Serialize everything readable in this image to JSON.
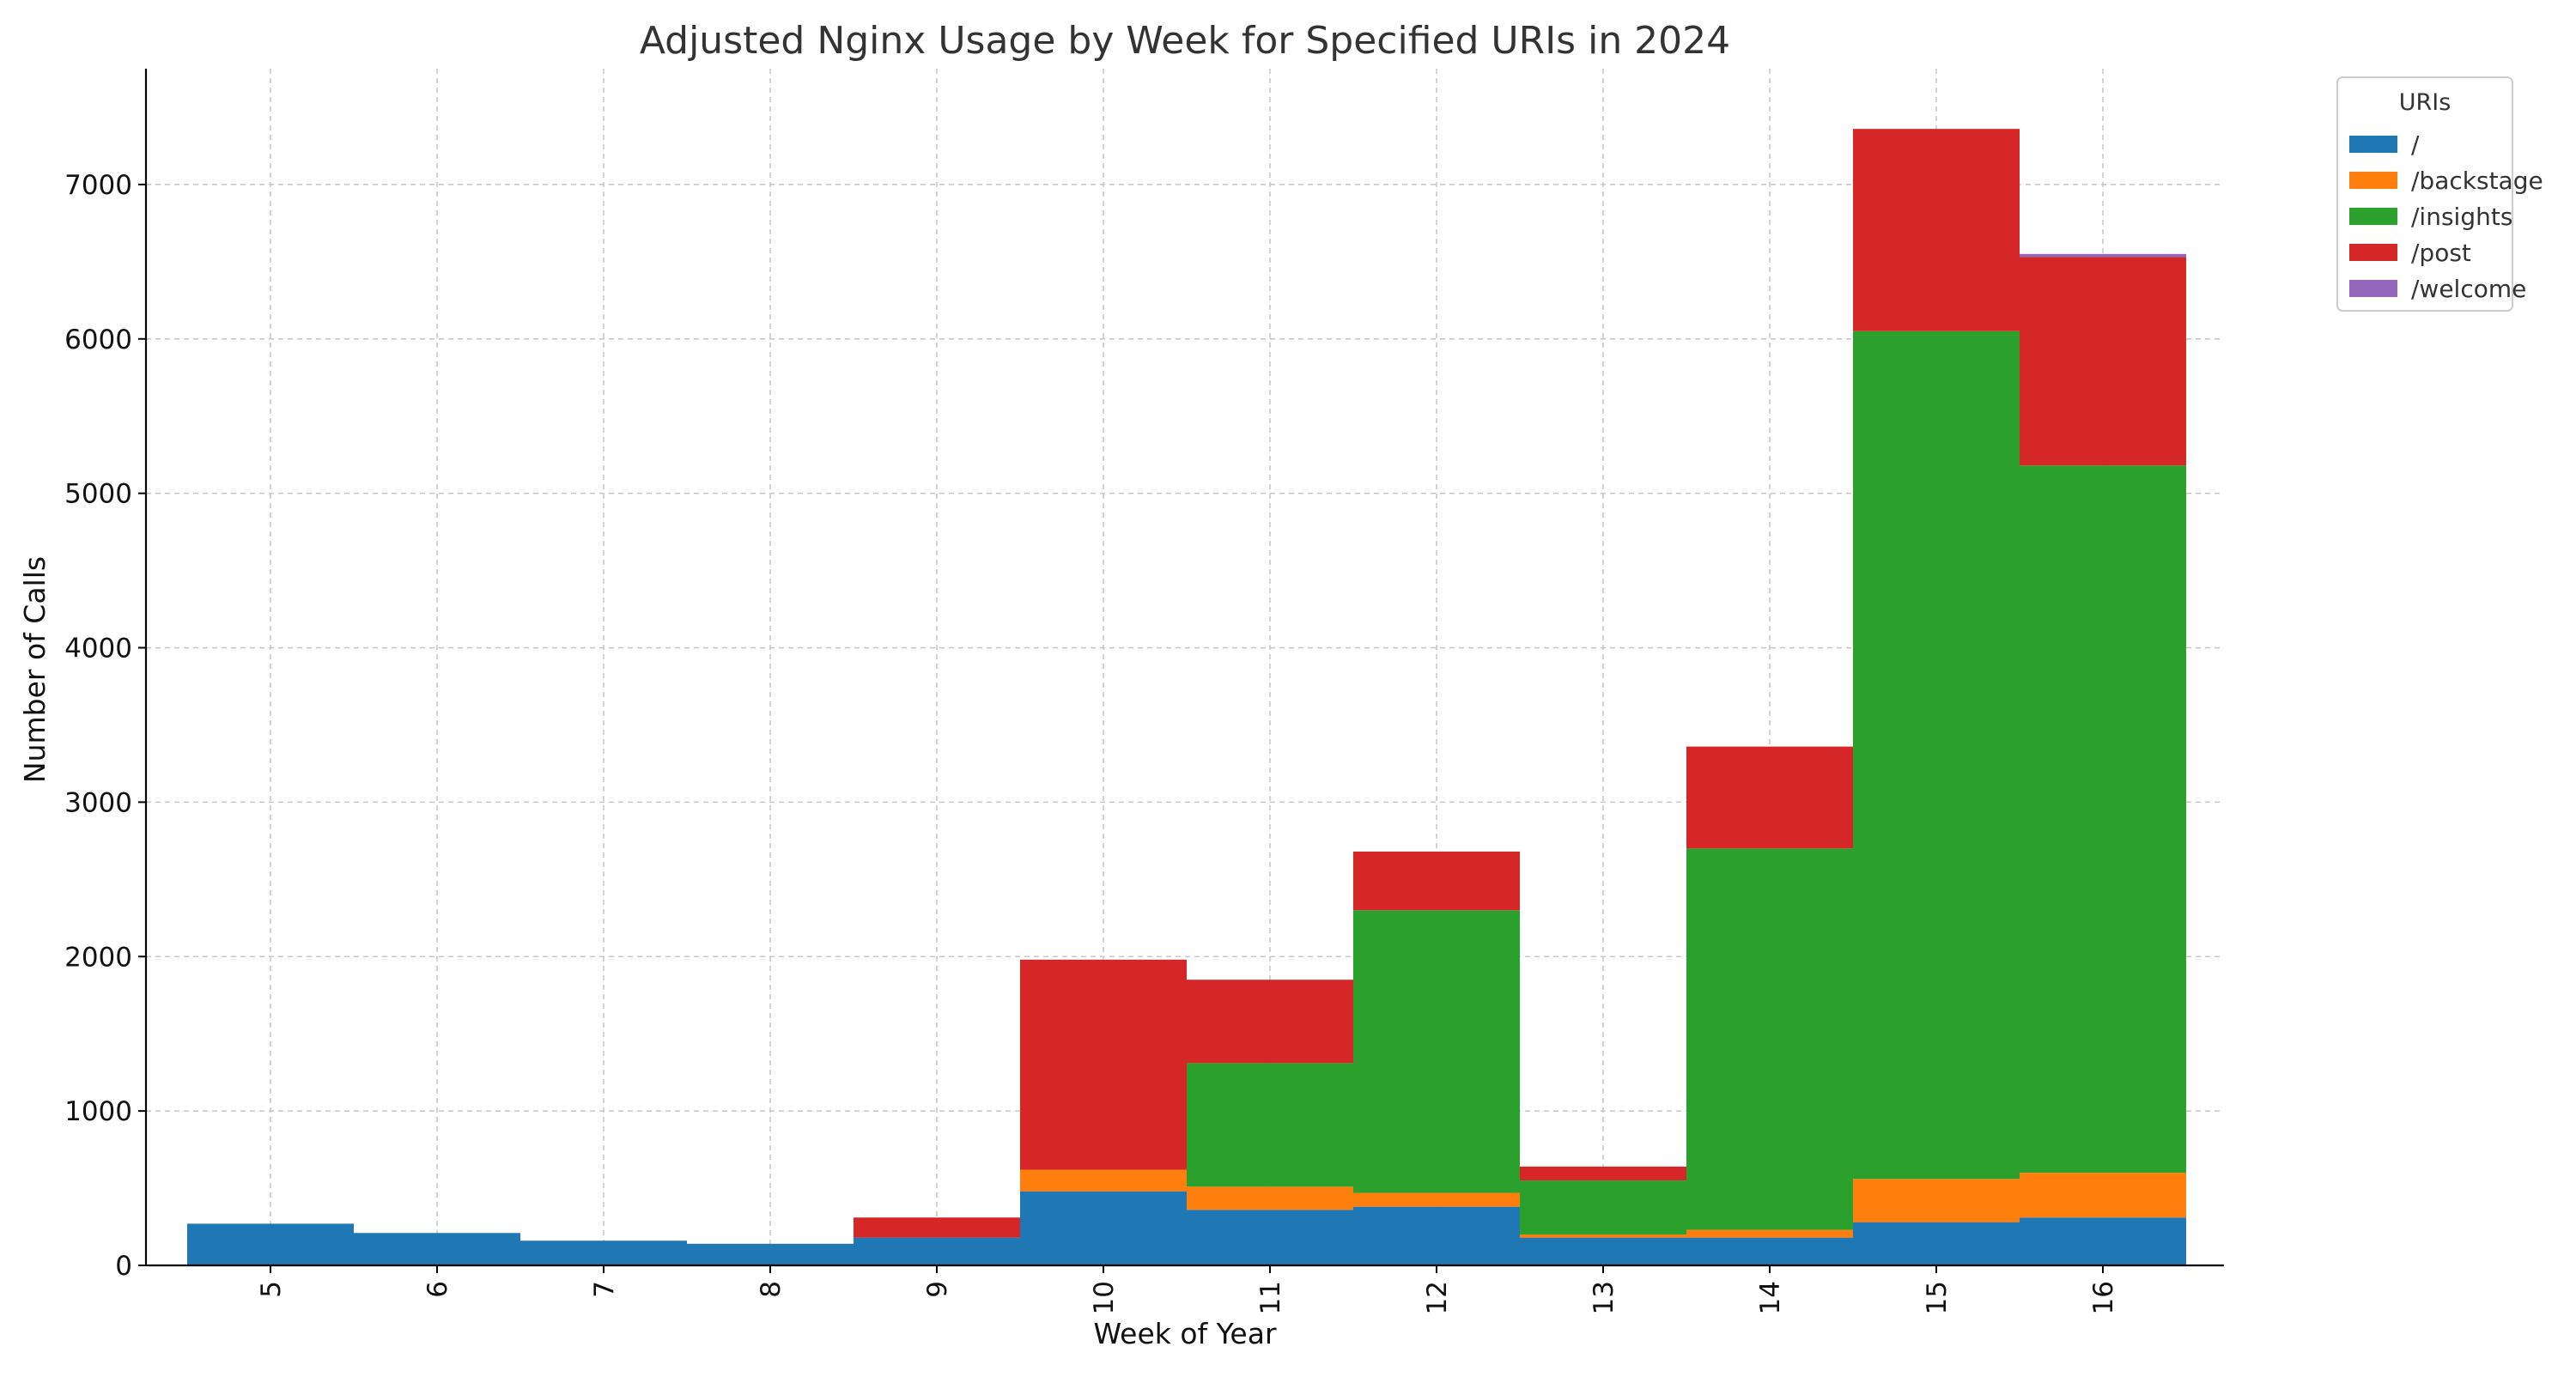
{
  "chart_data": {
    "type": "bar",
    "stacked": true,
    "title": "Adjusted Nginx Usage by Week for Specified URIs in 2024",
    "xlabel": "Week of Year",
    "ylabel": "Number of Calls",
    "ylim": [
      0,
      7750
    ],
    "yticks": [
      0,
      1000,
      2000,
      3000,
      4000,
      5000,
      6000,
      7000
    ],
    "grid": true,
    "legend": {
      "title": "URIs",
      "placement": "outside top-right"
    },
    "categories": [
      "5",
      "6",
      "7",
      "8",
      "9",
      "10",
      "11",
      "12",
      "13",
      "14",
      "15",
      "16"
    ],
    "series": [
      {
        "name": "/",
        "color": "#1f77b4",
        "values": [
          270,
          210,
          160,
          140,
          180,
          480,
          360,
          380,
          180,
          180,
          280,
          310
        ]
      },
      {
        "name": "/backstage",
        "color": "#ff7f0e",
        "values": [
          0,
          0,
          0,
          0,
          0,
          140,
          150,
          90,
          20,
          50,
          280,
          290
        ]
      },
      {
        "name": "/insights",
        "color": "#2ca02c",
        "values": [
          0,
          0,
          0,
          0,
          0,
          0,
          800,
          1830,
          350,
          2470,
          5490,
          4580
        ]
      },
      {
        "name": "/post",
        "color": "#d62728",
        "values": [
          0,
          0,
          0,
          0,
          130,
          1360,
          540,
          380,
          90,
          660,
          1310,
          1350
        ]
      },
      {
        "name": "/welcome",
        "color": "#9467bd",
        "values": [
          0,
          0,
          0,
          0,
          0,
          0,
          0,
          0,
          0,
          0,
          0,
          20
        ]
      }
    ]
  }
}
